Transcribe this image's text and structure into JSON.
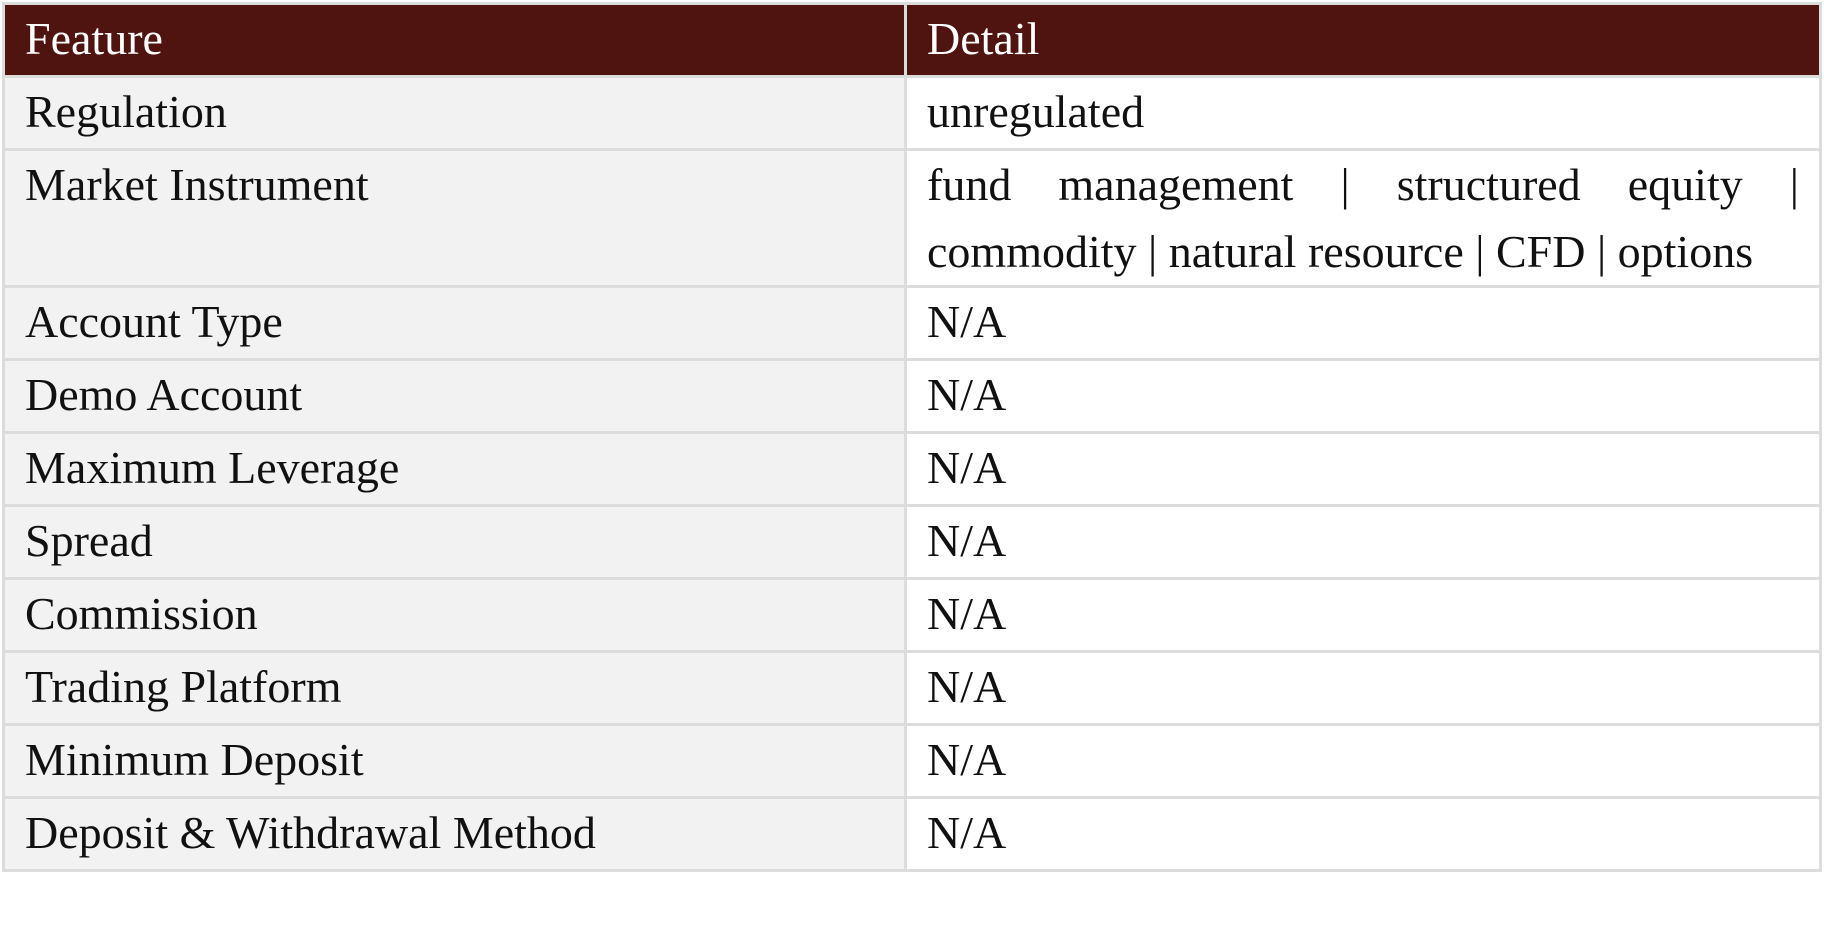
{
  "table": {
    "header": [
      "Feature",
      "Detail"
    ],
    "rows": [
      [
        "Regulation",
        "unregulated"
      ],
      [
        "Market Instrument",
        "fund management | structured equity | commodity | natural resource | CFD | options"
      ],
      [
        "Account Type",
        "N/A"
      ],
      [
        "Demo Account",
        "N/A"
      ],
      [
        "Maximum Leverage",
        "N/A"
      ],
      [
        "Spread",
        "N/A"
      ],
      [
        "Commission",
        "N/A"
      ],
      [
        "Trading Platform",
        "N/A"
      ],
      [
        "Minimum Deposit",
        "N/A"
      ],
      [
        "Deposit & Withdrawal Method",
        "N/A"
      ]
    ]
  }
}
